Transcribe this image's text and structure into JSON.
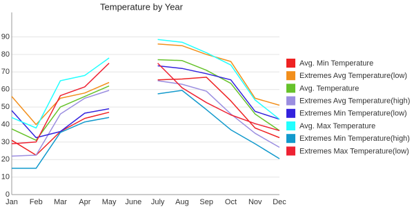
{
  "chart_data": {
    "type": "line",
    "title": "Temperature by Year",
    "categories": [
      "Jan",
      "Feb",
      "Mar",
      "Apr",
      "May",
      "June",
      "July",
      "Aug",
      "Sep",
      "Oct",
      "Nov",
      "Dec"
    ],
    "ylim": [
      0,
      104
    ],
    "yticks": [
      0,
      10,
      20,
      30,
      40,
      50,
      60,
      70,
      80,
      90
    ],
    "grid": true,
    "legend": "right",
    "series": [
      {
        "name": "Avg. Min Temperature",
        "color": "#ee2222",
        "values": [
          31,
          22.5,
          36,
          43.5,
          47,
          null,
          65.5,
          66,
          67,
          53.5,
          38,
          32.5
        ]
      },
      {
        "name": "Extremes Avg Temperature(low)",
        "color": "#f28f1c",
        "values": [
          56,
          40,
          55,
          58,
          64,
          null,
          86,
          85,
          80,
          76,
          55,
          51
        ]
      },
      {
        "name": "Avg. Temperature",
        "color": "#66c22a",
        "values": [
          37.5,
          31,
          50,
          56,
          62,
          null,
          77,
          76.5,
          71,
          63.5,
          46,
          36.5
        ]
      },
      {
        "name": "Extremes Avg Temperature(high)",
        "color": "#9b8ee0",
        "values": [
          22,
          22.5,
          46,
          55,
          59.5,
          null,
          65,
          63,
          59,
          46,
          35,
          27
        ]
      },
      {
        "name": "Extremes Min Temperature(low)",
        "color": "#3322dd",
        "values": [
          48,
          32.5,
          36,
          46.5,
          49,
          null,
          73.5,
          72,
          69,
          65.5,
          47.5,
          43
        ]
      },
      {
        "name": "Avg. Max Temperature",
        "color": "#22ffff",
        "values": [
          44,
          38,
          65,
          68,
          78,
          null,
          88.5,
          87,
          81,
          74,
          54,
          43
        ]
      },
      {
        "name": "Extremes Min Temperature(high)",
        "color": "#1199cc",
        "values": [
          15,
          15,
          35.5,
          41.5,
          44,
          null,
          57.5,
          59.5,
          48.5,
          37,
          29,
          20.5
        ]
      },
      {
        "name": "Extremes Max Temperature(low)",
        "color": "#ee2233",
        "values": [
          29,
          30,
          56.5,
          61.5,
          75,
          null,
          75,
          61,
          52.5,
          45.5,
          40.5,
          36.5
        ]
      }
    ]
  }
}
